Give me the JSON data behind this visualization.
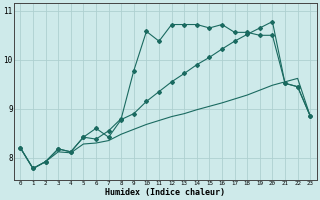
{
  "xlabel": "Humidex (Indice chaleur)",
  "bg_color": "#ceeaea",
  "grid_color": "#aed0d0",
  "line_color": "#1a6a60",
  "ylim": [
    7.55,
    11.15
  ],
  "xlim": [
    -0.5,
    23.5
  ],
  "yticks": [
    8,
    9,
    10,
    11
  ],
  "xticks": [
    0,
    1,
    2,
    3,
    4,
    5,
    6,
    7,
    8,
    9,
    10,
    11,
    12,
    13,
    14,
    15,
    16,
    17,
    18,
    19,
    20,
    21,
    22,
    23
  ],
  "line1_y": [
    8.2,
    7.78,
    7.92,
    8.18,
    8.12,
    8.42,
    8.38,
    8.55,
    8.8,
    9.78,
    10.58,
    10.38,
    10.72,
    10.72,
    10.72,
    10.65,
    10.72,
    10.56,
    10.56,
    10.5,
    10.5,
    9.52,
    9.45,
    8.85
  ],
  "line2_y": [
    8.2,
    7.78,
    7.92,
    8.18,
    8.12,
    8.42,
    8.6,
    8.42,
    8.78,
    8.9,
    9.15,
    9.35,
    9.55,
    9.72,
    9.9,
    10.05,
    10.22,
    10.38,
    10.52,
    10.65,
    10.78,
    9.52,
    9.45,
    8.85
  ],
  "line3_y": [
    8.2,
    7.78,
    7.92,
    8.12,
    8.1,
    8.28,
    8.3,
    8.35,
    8.48,
    8.58,
    8.68,
    8.76,
    8.84,
    8.9,
    8.98,
    9.05,
    9.12,
    9.2,
    9.28,
    9.38,
    9.48,
    9.55,
    9.62,
    8.85
  ]
}
